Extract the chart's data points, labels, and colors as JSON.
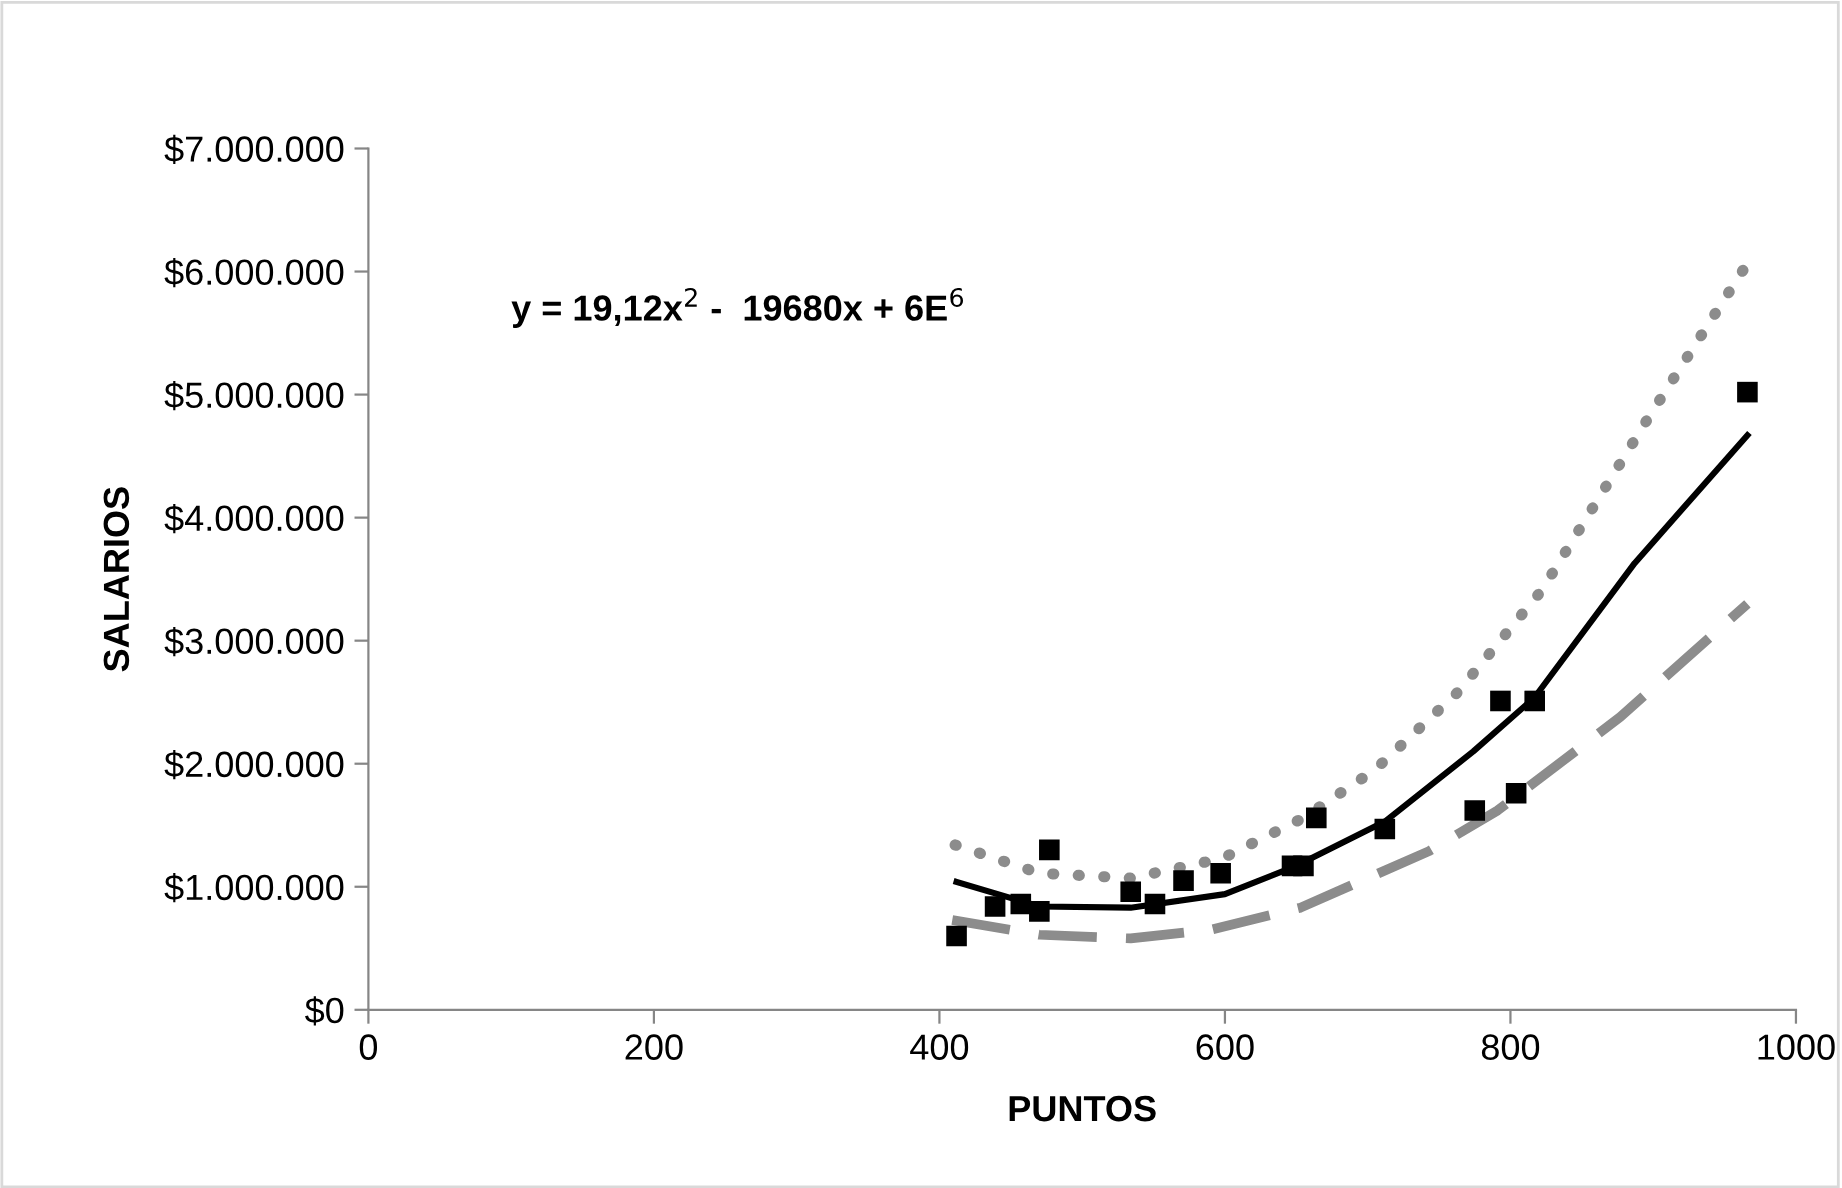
{
  "chart_data": {
    "type": "scatter",
    "xlabel": "PUNTOS",
    "ylabel": "SALARIOS",
    "annotations": [
      "y = 19,12x$^{2}$ -  19680x + 6E$^{6}$"
    ],
    "xlim": [
      0,
      1000
    ],
    "xticks": [
      0,
      200,
      400,
      600,
      800,
      1000
    ],
    "ylim": [
      0,
      7000000
    ],
    "yticks": [
      {
        "value": 0,
        "label": "$0"
      },
      {
        "value": 1000000,
        "label": "$1.000.000"
      },
      {
        "value": 2000000,
        "label": "$2.000.000"
      },
      {
        "value": 3000000,
        "label": "$3.000.000"
      },
      {
        "value": 4000000,
        "label": "$4.000.000"
      },
      {
        "value": 5000000,
        "label": "$5.000.000"
      },
      {
        "value": 6000000,
        "label": "$6.000.000"
      },
      {
        "value": 7000000,
        "label": "$7.000.000"
      }
    ],
    "grid": false,
    "legend": false,
    "series": [
      {
        "color": "#000000",
        "marker": "square",
        "x": [
          412,
          439,
          457,
          470,
          477,
          534,
          551,
          571,
          597,
          647,
          655,
          664,
          712,
          775,
          793,
          804,
          817,
          966
        ],
        "values": [
          600000,
          840000,
          860000,
          800000,
          1300000,
          960000,
          860000,
          1050000,
          1110000,
          1170000,
          1170000,
          1560000,
          1470000,
          1620000,
          2510000,
          1760000,
          2510000,
          5020000
        ]
      },
      {
        "type": "line",
        "color": "#000000",
        "line_style": "solid",
        "x": [
          412,
          470,
          534,
          600,
          650,
          712,
          774,
          817,
          887,
          966
        ],
        "values": [
          1040000,
          840000,
          830000,
          940000,
          1170000,
          1530000,
          2100000,
          2540000,
          3630000,
          4670000
        ]
      },
      {
        "type": "line",
        "color": "#8c8c8c",
        "line_style": "dotted",
        "x": [
          411,
          470,
          534,
          598,
          655,
          705,
          763,
          822,
          896,
          964
        ],
        "values": [
          1340000,
          1110000,
          1070000,
          1230000,
          1560000,
          1950000,
          2580000,
          3410000,
          4800000,
          6030000
        ]
      },
      {
        "type": "line",
        "color": "#8c8c8c",
        "line_style": "dashed",
        "x": [
          409,
          470,
          534,
          590,
          653,
          743,
          791,
          877,
          966
        ],
        "values": [
          730000,
          610000,
          580000,
          650000,
          830000,
          1290000,
          1620000,
          2380000,
          3300000
        ]
      }
    ]
  }
}
